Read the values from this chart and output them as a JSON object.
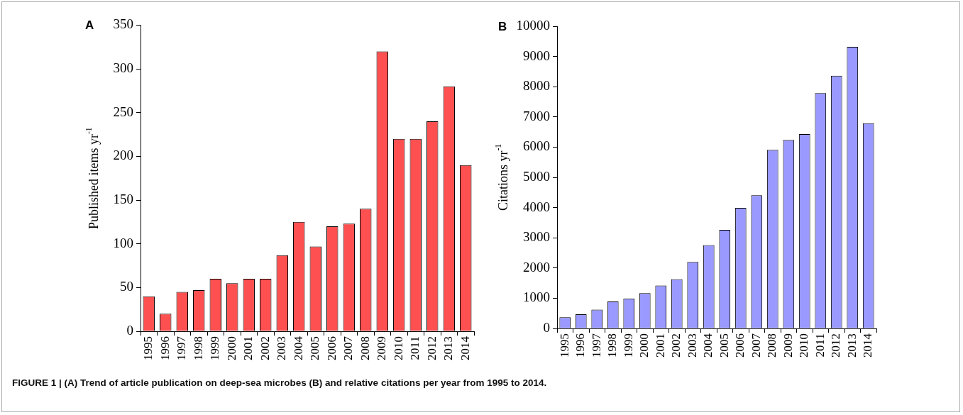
{
  "chart_data": [
    {
      "type": "bar",
      "title": "A",
      "ylabel": "Published items yr$^{-1}$",
      "categories": [
        "1995",
        "1996",
        "1997",
        "1998",
        "1999",
        "2000",
        "2001",
        "2002",
        "2003",
        "2004",
        "2005",
        "2006",
        "2007",
        "2008",
        "2009",
        "2010",
        "2011",
        "2012",
        "2013",
        "2014"
      ],
      "values": [
        40,
        20,
        45,
        47,
        60,
        55,
        60,
        60,
        87,
        125,
        97,
        120,
        123,
        140,
        320,
        220,
        220,
        240,
        280,
        190
      ],
      "color": "#fe5050",
      "ylim": [
        0,
        350
      ],
      "yticks": [
        0,
        50,
        100,
        150,
        200,
        250,
        300,
        350
      ],
      "grid": false,
      "legend": false,
      "annotations": [
        "FIGURE 1 | (A) Trend of article publication on deep-sea microbes (B) and relative citations per year from 1995 to 2014."
      ]
    },
    {
      "type": "bar",
      "title": "B",
      "ylabel": "Citations yr$^{-1}$",
      "categories": [
        "1995",
        "1996",
        "1997",
        "1998",
        "1999",
        "2000",
        "2001",
        "2002",
        "2003",
        "2004",
        "2005",
        "2006",
        "2007",
        "2008",
        "2009",
        "2010",
        "2011",
        "2012",
        "2013",
        "2014"
      ],
      "values": [
        370,
        470,
        620,
        890,
        990,
        1170,
        1420,
        1630,
        2200,
        2760,
        3260,
        3990,
        4410,
        5910,
        6240,
        6430,
        7790,
        8360,
        9320,
        6790
      ],
      "color": "#9999ff",
      "ylim": [
        0,
        10000
      ],
      "yticks": [
        0,
        1000,
        2000,
        3000,
        4000,
        5000,
        6000,
        7000,
        8000,
        9000,
        10000
      ],
      "grid": false,
      "legend": false
    }
  ]
}
